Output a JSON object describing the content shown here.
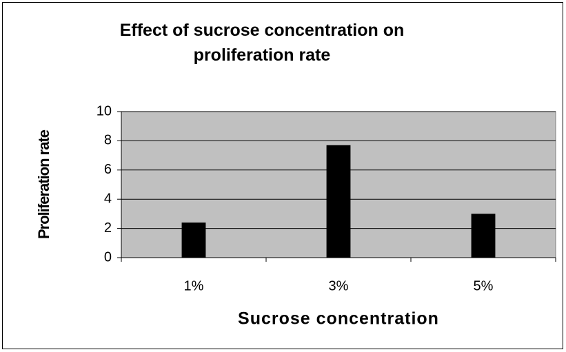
{
  "chart_data": {
    "type": "bar",
    "title": "Effect of sucrose concentration on proliferation rate",
    "x_label": "Sucrose concentration",
    "y_label": "Proliferation rate",
    "categories": [
      "1%",
      "3%",
      "5%"
    ],
    "values": [
      2.4,
      7.7,
      3.0
    ],
    "color": "#000000",
    "plot_background": "#c0c0c0",
    "ylim": [
      0,
      10
    ],
    "yticks": [
      0,
      2,
      4,
      6,
      8,
      10
    ],
    "grid": true
  }
}
